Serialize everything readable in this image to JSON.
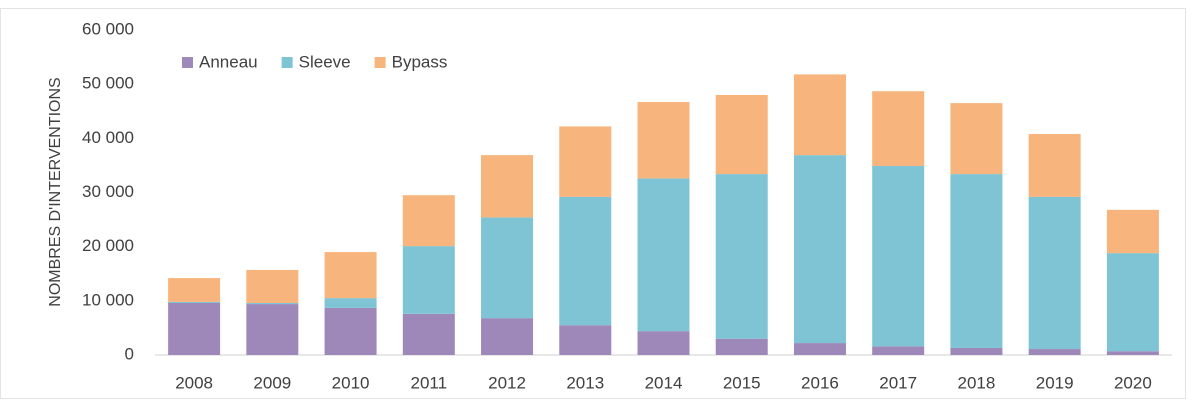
{
  "chart_data": {
    "type": "stacked_bar",
    "y_axis_label": "NOMBRES D'INTERVENTIONS",
    "categories": [
      "2008",
      "2009",
      "2010",
      "2011",
      "2012",
      "2013",
      "2014",
      "2015",
      "2016",
      "2017",
      "2018",
      "2019",
      "2020"
    ],
    "series": [
      {
        "name": "Anneau",
        "color": "#9e88b9",
        "values": [
          9600,
          9400,
          8700,
          7600,
          6800,
          5500,
          4400,
          3000,
          2200,
          1600,
          1300,
          1100,
          700
        ]
      },
      {
        "name": "Sleeve",
        "color": "#7fc4d4",
        "values": [
          200,
          200,
          1800,
          12500,
          18600,
          23700,
          28200,
          30400,
          34700,
          33300,
          32100,
          28100,
          18100
        ]
      },
      {
        "name": "Bypass",
        "color": "#f7b47c",
        "values": [
          4400,
          6100,
          8500,
          9400,
          11500,
          13000,
          14100,
          14600,
          14900,
          13800,
          13100,
          11600,
          8000
        ]
      }
    ],
    "ylim": [
      0,
      60000
    ],
    "yticks": [
      0,
      {
        "value": 10000,
        "label": "10 000"
      },
      {
        "value": 20000,
        "label": "20 000"
      },
      {
        "value": 30000,
        "label": "30 000"
      },
      {
        "value": 40000,
        "label": "40 000"
      },
      {
        "value": 50000,
        "label": "50 000"
      },
      {
        "value": 60000,
        "label": "60 000"
      }
    ],
    "legend": "top-left"
  }
}
